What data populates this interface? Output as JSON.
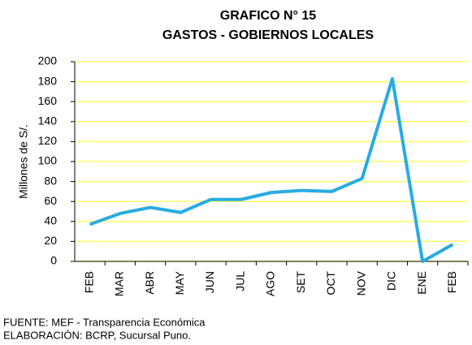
{
  "chart_data": {
    "type": "line",
    "title": "GRAFICO N° 15",
    "subtitle": "GASTOS - GOBIERNOS LOCALES",
    "y_label": "Millones de S/.",
    "categories": [
      "FEB",
      "MAR",
      "ABR",
      "MAY",
      "JUN",
      "JUL",
      "AGO",
      "SET",
      "OCT",
      "NOV",
      "DIC",
      "ENE",
      "FEB"
    ],
    "series": [
      {
        "name": "Gastos",
        "color": "#29abe2",
        "values": [
          37,
          48,
          54,
          49,
          62,
          62,
          69,
          71,
          70,
          83,
          183,
          0,
          17
        ]
      }
    ],
    "ylim": [
      0,
      200
    ],
    "yticks": [
      0,
      20,
      40,
      60,
      80,
      100,
      120,
      140,
      160,
      180,
      200
    ],
    "grid": true,
    "grid_color": "#ffff66",
    "notes": [
      "FUENTE: MEF - Transparencia Económica",
      "ELABORACIÓN: BCRP,  Sucursal Puno."
    ]
  }
}
